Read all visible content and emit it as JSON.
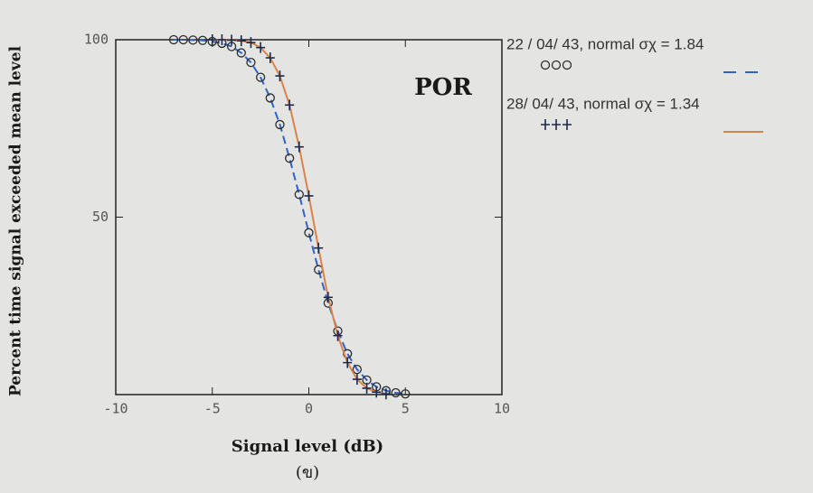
{
  "chart_data": {
    "type": "scatter",
    "title": "POR",
    "x_label": "Signal level   (dB)",
    "x_sublabel": "(ข)",
    "y_label": "Percent  time signal exceeded mean level",
    "xlim": [
      -10,
      10
    ],
    "xticks": [
      -10,
      -5,
      0,
      5,
      10
    ],
    "ylim": [
      0,
      100
    ],
    "yticks": [
      50,
      100
    ],
    "series": [
      {
        "name": "22 / 04/ 43, normal σχ = 1.84",
        "marker": "circle",
        "color": "#2b2b2b",
        "line_color": "#2f63c4",
        "line_dash": true,
        "x": [
          -7,
          -6.5,
          -6,
          -5.5,
          -5,
          -4.5,
          -4,
          -3.5,
          -3,
          -2.5,
          -2,
          -1.5,
          -1,
          -0.5,
          0,
          0.5,
          1,
          1.5,
          2,
          2.5,
          3,
          3.5,
          4,
          4.5,
          5
        ],
        "values": [
          100,
          100,
          99.9,
          99.8,
          99.5,
          99.0,
          98.1,
          96.3,
          93.6,
          89.4,
          83.6,
          76.1,
          66.6,
          56.4,
          45.6,
          35.2,
          25.8,
          17.9,
          11.5,
          7.1,
          4.1,
          2.2,
          1.1,
          0.5,
          0.2
        ]
      },
      {
        "name": "28/ 04/ 43, normal σχ = 1.34",
        "marker": "plus",
        "color": "#1c2a4a",
        "line_color": "#d9824a",
        "line_dash": false,
        "x": [
          -5,
          -4.5,
          -4,
          -3.5,
          -3,
          -2.5,
          -2,
          -1.5,
          -1,
          -0.5,
          0,
          0.5,
          1,
          1.5,
          2,
          2.5,
          3,
          3.5,
          4
        ],
        "values": [
          100,
          100,
          99.9,
          99.7,
          99.2,
          97.8,
          94.9,
          89.8,
          81.6,
          69.8,
          56.0,
          41.3,
          27.4,
          16.6,
          9.0,
          4.3,
          1.8,
          0.7,
          0.2
        ]
      }
    ]
  }
}
